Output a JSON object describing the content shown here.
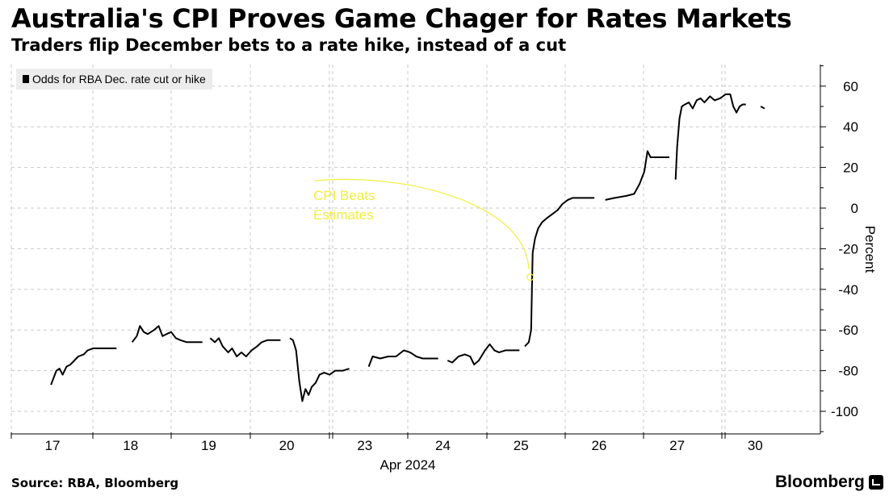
{
  "header": {
    "title": "Australia's CPI Proves Game Chager for Rates Markets",
    "subtitle": "Traders flip December bets to a rate hike, instead of a cut"
  },
  "footer": {
    "source": "Source: RBA, Bloomberg",
    "brand": "Bloomberg",
    "brand_icon": "bloomberg-terminal-icon"
  },
  "colors": {
    "line": "#000000",
    "annotation": "#f2ee3c",
    "grid": "#c8c8c8"
  },
  "chart_data": {
    "type": "line",
    "title": "Australia's CPI Proves Game Chager for Rates Markets",
    "xlabel": "Apr 2024",
    "ylabel": "Percent",
    "ylim": [
      -110,
      70
    ],
    "y_ticks": [
      60,
      40,
      20,
      0,
      -20,
      -40,
      -60,
      -80,
      -100
    ],
    "grid": "horizontal and vertical (dashed)",
    "legend": {
      "label": "Odds for RBA Dec. rate cut or hike",
      "placement": "top-left"
    },
    "categories": [
      "17",
      "18",
      "19",
      "20",
      "23",
      "24",
      "25",
      "26",
      "27",
      "30"
    ],
    "annotation": {
      "text_lines": [
        "CPI Beats",
        "Estimates"
      ],
      "at_x": 6.12,
      "at_y": -34
    },
    "series": [
      {
        "name": "Odds for RBA Dec. rate cut or hike",
        "segments": [
          [
            [
              -0.02,
              -87
            ],
            [
              0.05,
              -80
            ],
            [
              0.09,
              -79
            ],
            [
              0.13,
              -82
            ],
            [
              0.18,
              -78
            ],
            [
              0.23,
              -77
            ],
            [
              0.28,
              -75
            ],
            [
              0.33,
              -73
            ],
            [
              0.4,
              -72
            ],
            [
              0.45,
              -70
            ],
            [
              0.52,
              -69
            ],
            [
              0.6,
              -69
            ],
            [
              0.7,
              -69
            ],
            [
              0.82,
              -69
            ]
          ],
          [
            [
              1.02,
              -66
            ],
            [
              1.08,
              -63
            ],
            [
              1.12,
              -58
            ],
            [
              1.17,
              -61
            ],
            [
              1.22,
              -62
            ],
            [
              1.3,
              -60
            ],
            [
              1.36,
              -58
            ],
            [
              1.41,
              -63
            ],
            [
              1.46,
              -62
            ],
            [
              1.52,
              -61
            ],
            [
              1.58,
              -64
            ],
            [
              1.64,
              -65
            ],
            [
              1.72,
              -66
            ],
            [
              1.8,
              -66
            ],
            [
              1.92,
              -66
            ]
          ],
          [
            [
              2.02,
              -64
            ],
            [
              2.08,
              -66
            ],
            [
              2.13,
              -64
            ],
            [
              2.18,
              -68
            ],
            [
              2.25,
              -71
            ],
            [
              2.3,
              -69
            ],
            [
              2.36,
              -73
            ],
            [
              2.42,
              -71
            ],
            [
              2.48,
              -73
            ],
            [
              2.55,
              -70
            ],
            [
              2.62,
              -68
            ],
            [
              2.68,
              -66
            ],
            [
              2.75,
              -65
            ],
            [
              2.84,
              -65
            ],
            [
              2.92,
              -65
            ]
          ],
          [
            [
              3.04,
              -64
            ],
            [
              3.08,
              -65
            ],
            [
              3.12,
              -70
            ],
            [
              3.16,
              -85
            ],
            [
              3.2,
              -95
            ],
            [
              3.24,
              -89
            ],
            [
              3.28,
              -92
            ],
            [
              3.32,
              -88
            ],
            [
              3.37,
              -86
            ],
            [
              3.42,
              -82
            ],
            [
              3.48,
              -81
            ],
            [
              3.55,
              -82
            ],
            [
              3.62,
              -80
            ],
            [
              3.72,
              -80
            ],
            [
              3.8,
              -79
            ]
          ],
          [
            [
              4.05,
              -78
            ],
            [
              4.1,
              -73
            ],
            [
              4.2,
              -74
            ],
            [
              4.3,
              -73
            ],
            [
              4.4,
              -73
            ],
            [
              4.5,
              -70
            ],
            [
              4.58,
              -71
            ],
            [
              4.66,
              -73
            ],
            [
              4.74,
              -74
            ],
            [
              4.85,
              -74
            ],
            [
              4.94,
              -74
            ]
          ],
          [
            [
              5.06,
              -75
            ],
            [
              5.12,
              -76
            ],
            [
              5.2,
              -73
            ],
            [
              5.28,
              -72
            ],
            [
              5.35,
              -73
            ],
            [
              5.4,
              -77
            ],
            [
              5.46,
              -75
            ],
            [
              5.54,
              -70
            ],
            [
              5.6,
              -67
            ],
            [
              5.66,
              -70
            ],
            [
              5.72,
              -71
            ],
            [
              5.8,
              -70
            ],
            [
              5.9,
              -70
            ],
            [
              5.98,
              -70
            ]
          ],
          [
            [
              6.05,
              -68
            ],
            [
              6.1,
              -66
            ],
            [
              6.13,
              -60
            ],
            [
              6.15,
              -22
            ],
            [
              6.18,
              -15
            ],
            [
              6.22,
              -10
            ],
            [
              6.27,
              -7
            ],
            [
              6.33,
              -5
            ],
            [
              6.4,
              -3
            ],
            [
              6.47,
              -1
            ],
            [
              6.53,
              2
            ],
            [
              6.6,
              4
            ],
            [
              6.66,
              5
            ],
            [
              6.72,
              5
            ],
            [
              6.8,
              5
            ],
            [
              6.88,
              5
            ],
            [
              6.94,
              5
            ]
          ],
          [
            [
              7.08,
              4
            ],
            [
              7.2,
              5
            ],
            [
              7.35,
              6
            ],
            [
              7.45,
              7
            ],
            [
              7.52,
              12
            ],
            [
              7.58,
              18
            ],
            [
              7.62,
              28
            ],
            [
              7.66,
              25
            ],
            [
              7.7,
              25
            ],
            [
              7.8,
              25
            ],
            [
              7.9,
              25
            ]
          ],
          [
            [
              7.98,
              14
            ],
            [
              8.0,
              30
            ],
            [
              8.03,
              44
            ],
            [
              8.06,
              50
            ],
            [
              8.1,
              51
            ],
            [
              8.15,
              52
            ],
            [
              8.2,
              49
            ],
            [
              8.25,
              53
            ],
            [
              8.3,
              54
            ],
            [
              8.35,
              52
            ],
            [
              8.42,
              55
            ],
            [
              8.48,
              53
            ],
            [
              8.55,
              54
            ],
            [
              8.62,
              56
            ],
            [
              8.68,
              56
            ],
            [
              8.72,
              50
            ],
            [
              8.76,
              47
            ],
            [
              8.8,
              50
            ],
            [
              8.84,
              51
            ],
            [
              8.88,
              51
            ]
          ],
          [
            [
              9.07,
              50
            ],
            [
              9.12,
              49
            ]
          ]
        ]
      }
    ]
  }
}
